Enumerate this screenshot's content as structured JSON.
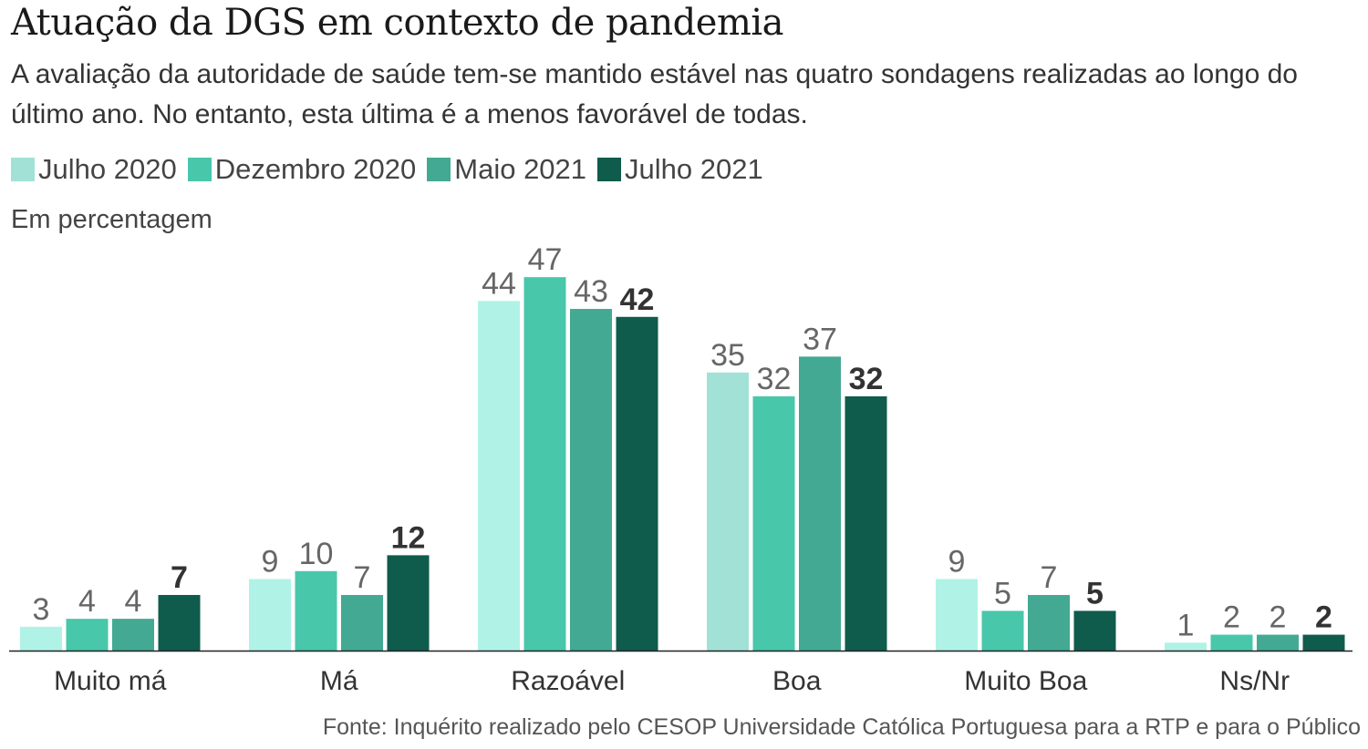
{
  "title": "Atuação da DGS em contexto de pandemia",
  "subtitle": "A avaliação da autoridade de saúde tem-se mantido estável nas quatro sondagens realizadas ao longo do último ano. No entanto, esta última é a menos favorável de todas.",
  "unit_label": "Em percentagem",
  "footer": "Fonte: Inquérito realizado pelo CESOP Universidade Católica Portuguesa para a RTP e para o Público",
  "legend": [
    {
      "label": "Julho 2020",
      "color": "#a2e2d6"
    },
    {
      "label": "Dezembro 2020",
      "color": "#48c7ab"
    },
    {
      "label": "Maio 2021",
      "color": "#43a993"
    },
    {
      "label": "Julho 2021",
      "color": "#0f5b4c"
    }
  ],
  "chart_data": {
    "type": "bar",
    "title": "Atuação da DGS em contexto de pandemia",
    "xlabel": "",
    "ylabel": "Em percentagem",
    "ylim": [
      0,
      47
    ],
    "grid": false,
    "legend_position": "top-left",
    "categories": [
      "Muito má",
      "Má",
      "Razoável",
      "Boa",
      "Muito Boa",
      "Ns/Nr"
    ],
    "series": [
      {
        "name": "Julho 2020",
        "color": "#b0f3e6",
        "values": [
          3,
          9,
          44,
          35,
          9,
          1
        ]
      },
      {
        "name": "Dezembro 2020",
        "color": "#48c7ab",
        "values": [
          4,
          10,
          47,
          32,
          5,
          2
        ]
      },
      {
        "name": "Maio 2021",
        "color": "#43a993",
        "values": [
          4,
          7,
          43,
          37,
          7,
          2
        ]
      },
      {
        "name": "Julho 2021",
        "color": "#0f5b4c",
        "values": [
          7,
          12,
          42,
          32,
          5,
          2
        ],
        "bold_labels": true
      }
    ],
    "highlighted_category": "Boa",
    "highlight_first_series_color": "#a2e2d6"
  }
}
